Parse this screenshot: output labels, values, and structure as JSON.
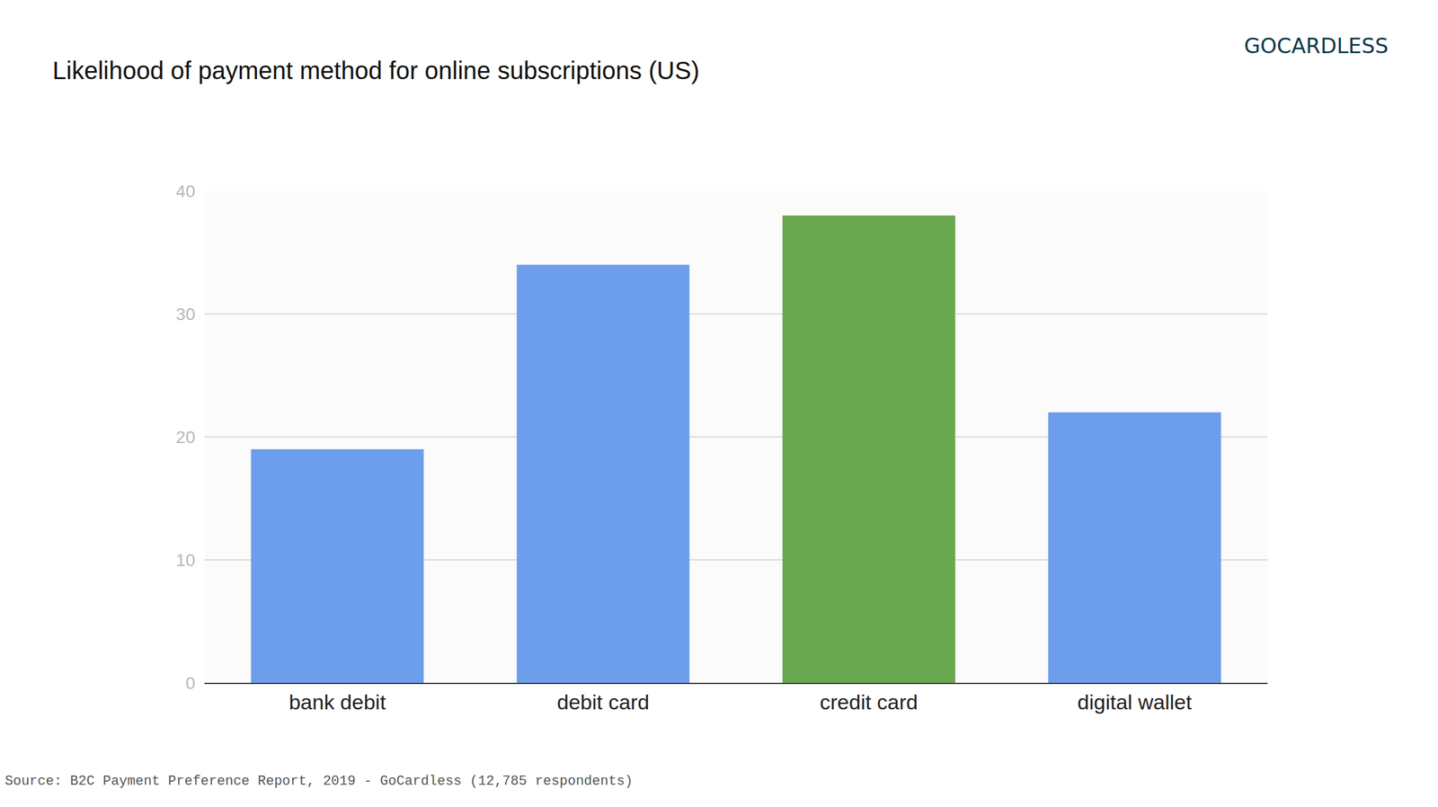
{
  "chart_data": {
    "type": "bar",
    "title": "Likelihood of payment method for online subscriptions (US)",
    "categories": [
      "bank debit",
      "debit card",
      "credit card",
      "digital wallet"
    ],
    "values": [
      19,
      34,
      38,
      22
    ],
    "colors": [
      "#6d9eeb",
      "#6d9eeb",
      "#6aa84f",
      "#6d9eeb"
    ],
    "ylim": [
      0,
      40
    ],
    "yticks": [
      0,
      10,
      20,
      30,
      40
    ],
    "grid": true,
    "annotations": [
      "GOCARDLESS",
      "Source: B2C Payment Preference Report, 2019 - GoCardless (12,785 respondents)"
    ]
  }
}
